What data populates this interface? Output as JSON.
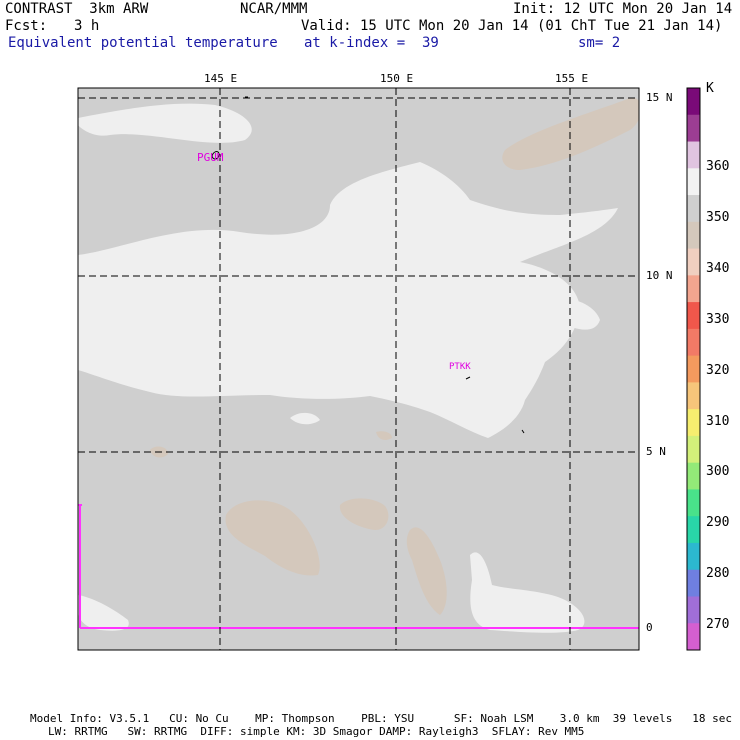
{
  "header": {
    "model": "CONTRAST  3km ARW",
    "org": "NCAR/MMM",
    "init": "Init: 12 UTC Mon 20 Jan 14",
    "fcst_label": "Fcst:",
    "fcst_value": "3 h",
    "valid": "Valid: 15 UTC Mon 20 Jan 14 (01 ChT Tue 21 Jan 14)",
    "field": "Equivalent potential temperature",
    "level": "at k-index =  39",
    "smoothing": "sm= 2"
  },
  "map": {
    "lon_labels": [
      "145 E",
      "150 E",
      "155 E"
    ],
    "lat_labels": [
      "15 N",
      "10 N",
      "5 N",
      "0"
    ],
    "stations": [
      "PGUM",
      "PTKK"
    ]
  },
  "colorbar": {
    "unit": "K",
    "labels": [
      "360",
      "350",
      "340",
      "330",
      "320",
      "310",
      "300",
      "290",
      "280",
      "270"
    ],
    "colors": [
      "#7a0a78",
      "#9c3d93",
      "#e0c4e0",
      "#f2f2f2",
      "#cfcfcf",
      "#d4c8bc",
      "#f0cfc0",
      "#f3a58f",
      "#f0574b",
      "#f27a66",
      "#f49a5e",
      "#f7c57a",
      "#f6ee6f",
      "#d3f07a",
      "#93ea78",
      "#49e28a",
      "#29d6a8",
      "#2cb8cf",
      "#6f7fe0",
      "#a06ed8",
      "#d45fd0"
    ]
  },
  "footer": {
    "line1": "Model Info: V3.5.1   CU: No Cu    MP: Thompson    PBL: YSU      SF: Noah LSM    3.0 km  39 levels   18 sec",
    "line2": "LW: RRTMG   SW: RRTMG  DIFF: simple KM: 3D Smagor DAMP: Rayleigh3  SFLAY: Rev MM5"
  }
}
